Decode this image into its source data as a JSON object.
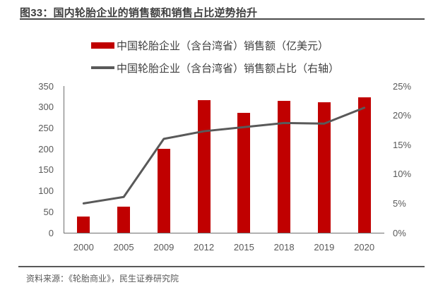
{
  "title": "图33：国内轮胎企业的销售额和销售占比逆势抬升",
  "source": "资料来源：《轮胎商业》，民生证券研究院",
  "colors": {
    "bar": "#c00000",
    "line": "#595959",
    "axis": "#6e6e6e",
    "tick_text": "#595959",
    "title_text": "#3f3f3f"
  },
  "legend": {
    "items": [
      {
        "label": "中国轮胎企业（含台湾省）销售额（亿美元）",
        "swatch": "bar",
        "color": "#c00000"
      },
      {
        "label": "中国轮胎企业（含台湾省）销售额占比（右轴）",
        "swatch": "line",
        "color": "#595959"
      }
    ]
  },
  "chart_data": {
    "type": "bar",
    "combo": "bar+line",
    "title": "国内轮胎企业的销售额和销售占比逆势抬升",
    "categories": [
      "2000",
      "2005",
      "2009",
      "2012",
      "2015",
      "2018",
      "2019",
      "2020"
    ],
    "series": [
      {
        "name": "中国轮胎企业（含台湾省）销售额（亿美元）",
        "type": "bar",
        "axis": "left",
        "color": "#c00000",
        "values": [
          38,
          62,
          200,
          316,
          286,
          315,
          311,
          323
        ]
      },
      {
        "name": "中国轮胎企业（含台湾省）销售额占比（右轴）",
        "type": "line",
        "axis": "right",
        "color": "#595959",
        "values": [
          5.0,
          6.1,
          16.0,
          17.3,
          18.0,
          18.7,
          18.6,
          21.3
        ]
      }
    ],
    "left_axis": {
      "min": 0,
      "max": 350,
      "step": 50,
      "ticks": [
        "350",
        "300",
        "250",
        "200",
        "150",
        "100",
        "50",
        "0"
      ]
    },
    "right_axis": {
      "min": 0,
      "max": 25,
      "step": 5,
      "ticks": [
        "25%",
        "20%",
        "15%",
        "10%",
        "5%",
        "0%"
      ]
    },
    "grid": false,
    "legend_position": "top",
    "xlabel": "",
    "ylabel": ""
  }
}
